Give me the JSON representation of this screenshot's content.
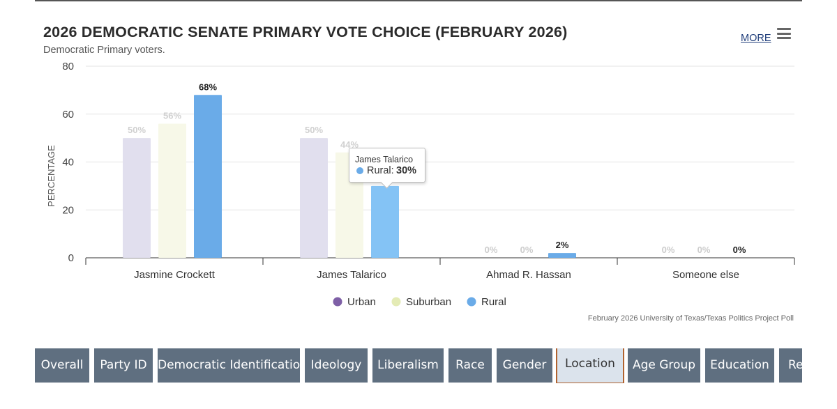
{
  "header": {
    "title": "2026 DEMOCRATIC SENATE PRIMARY VOTE CHOICE (FEBRUARY 2026)",
    "subtitle": "Democratic Primary voters.",
    "more_label": "MORE"
  },
  "chart_data": {
    "type": "bar",
    "title": "2026 DEMOCRATIC SENATE PRIMARY VOTE CHOICE (FEBRUARY 2026)",
    "subtitle": "Democratic Primary voters.",
    "xlabel": "",
    "ylabel": "PERCENTAGE",
    "ylim": [
      0,
      80
    ],
    "yticks": [
      0,
      20,
      40,
      60,
      80
    ],
    "grid": true,
    "categories": [
      "Jasmine Crockett",
      "James Talarico",
      "Ahmad R. Hassan",
      "Someone else"
    ],
    "series": [
      {
        "name": "Urban",
        "values": [
          50,
          50,
          0,
          0
        ],
        "color": "#e1dfee",
        "legend_color": "#7e5fa6"
      },
      {
        "name": "Suburban",
        "values": [
          56,
          44,
          0,
          0
        ],
        "color": "#f7f8e8",
        "legend_color": "#e4ebb5"
      },
      {
        "name": "Rural",
        "values": [
          68,
          30,
          2,
          0
        ],
        "color": "#6aabe8",
        "legend_color": "#6aabe8"
      }
    ],
    "value_suffix": "%",
    "legend_position": "bottom",
    "source": "February 2026 University of Texas/Texas Politics Project Poll"
  },
  "tooltip": {
    "title": "James Talarico",
    "series_label": "Rural:",
    "value": "30%"
  },
  "tabs": [
    {
      "label": "Overall",
      "active": false
    },
    {
      "label": "Party ID",
      "active": false
    },
    {
      "label": "Democratic Identification",
      "active": false
    },
    {
      "label": "Ideology",
      "active": false
    },
    {
      "label": "Liberalism",
      "active": false
    },
    {
      "label": "Race",
      "active": false
    },
    {
      "label": "Gender",
      "active": false
    },
    {
      "label": "Location",
      "active": true
    },
    {
      "label": "Age Group",
      "active": false
    },
    {
      "label": "Education",
      "active": false
    },
    {
      "label": "Religion",
      "active": false
    }
  ]
}
